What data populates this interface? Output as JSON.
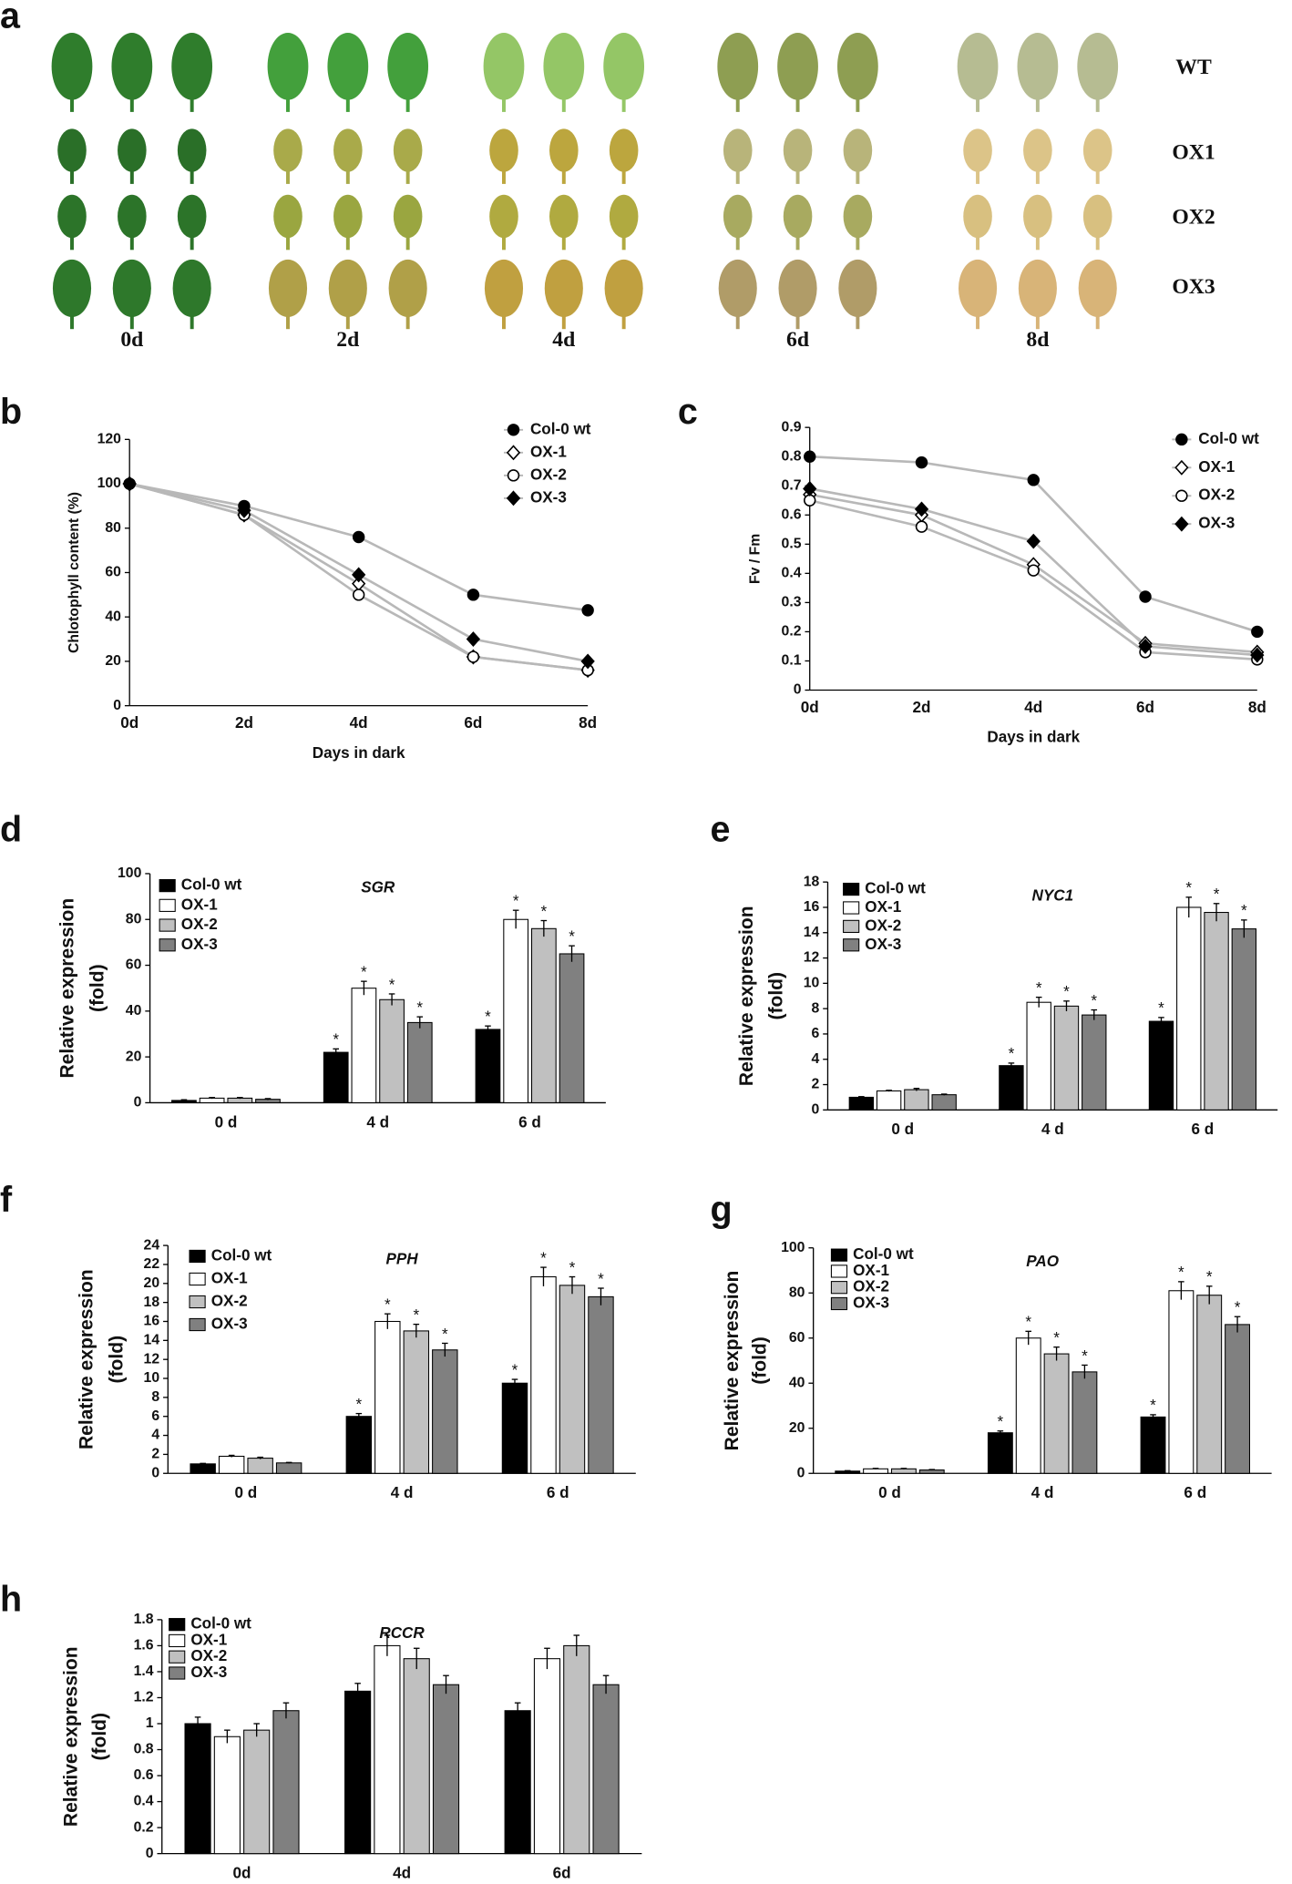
{
  "photo_panel": {
    "panel": "a",
    "lines": [
      "WT",
      "OX1",
      "OX2",
      "OX3"
    ],
    "days": [
      "0d",
      "2d",
      "4d",
      "6d",
      "8d"
    ]
  },
  "chart_data": [
    {
      "type": "line",
      "panel": "b",
      "ylabel": [
        "Chlotophyll content (%)"
      ],
      "xlabel": "Days in dark",
      "categories": [
        "0d",
        "2d",
        "4d",
        "6d",
        "8d"
      ],
      "ylim": [
        0,
        120
      ],
      "yticks": [
        0,
        20,
        40,
        60,
        80,
        100,
        120
      ],
      "series": [
        {
          "name": "Col-0 wt",
          "marker": "circle",
          "filled": true,
          "color": "#b8b8b8",
          "values": [
            100,
            90,
            76,
            50,
            43
          ]
        },
        {
          "name": "OX-1",
          "marker": "diamond",
          "filled": false,
          "color": "#b8b8b8",
          "values": [
            100,
            86,
            55,
            22,
            16
          ]
        },
        {
          "name": "OX-2",
          "marker": "circle",
          "filled": false,
          "color": "#b8b8b8",
          "values": [
            100,
            86,
            50,
            22,
            16
          ]
        },
        {
          "name": "OX-3",
          "marker": "diamond",
          "filled": true,
          "color": "#b8b8b8",
          "values": [
            100,
            88,
            59,
            30,
            20
          ]
        }
      ]
    },
    {
      "type": "line",
      "panel": "c",
      "ylabel": [
        "Fv / Fm"
      ],
      "xlabel": "Days in dark",
      "categories": [
        "0d",
        "2d",
        "4d",
        "6d",
        "8d"
      ],
      "ylim": [
        0,
        0.9
      ],
      "yticks": [
        0,
        0.1,
        0.2,
        0.3,
        0.4,
        0.5,
        0.6,
        0.7,
        0.8,
        0.9
      ],
      "series": [
        {
          "name": "Col-0 wt",
          "marker": "circle",
          "filled": true,
          "color": "#b8b8b8",
          "values": [
            0.8,
            0.78,
            0.72,
            0.32,
            0.2
          ]
        },
        {
          "name": "OX-1",
          "marker": "diamond",
          "filled": false,
          "color": "#b8b8b8",
          "values": [
            0.67,
            0.6,
            0.43,
            0.16,
            0.13
          ]
        },
        {
          "name": "OX-2",
          "marker": "circle",
          "filled": false,
          "color": "#b8b8b8",
          "values": [
            0.65,
            0.56,
            0.41,
            0.13,
            0.105
          ]
        },
        {
          "name": "OX-3",
          "marker": "diamond",
          "filled": true,
          "color": "#b8b8b8",
          "values": [
            0.69,
            0.62,
            0.51,
            0.15,
            0.12
          ]
        }
      ]
    },
    {
      "type": "bar",
      "panel": "d",
      "gene": "SGR",
      "ylabel": [
        "Relative expression",
        "(fold)"
      ],
      "categories": [
        "0 d",
        "4 d",
        "6 d"
      ],
      "ylim": [
        0,
        100
      ],
      "yticks": [
        0,
        20,
        40,
        60,
        80,
        100
      ],
      "series": [
        {
          "name": "Col-0 wt",
          "color": "#000000",
          "values": [
            1,
            22,
            32
          ],
          "errors": [
            0.3,
            1.5,
            1.5
          ],
          "significance": [
            null,
            "*",
            "*"
          ]
        },
        {
          "name": "OX-1",
          "color": "#ffffff",
          "values": [
            2,
            50,
            80
          ],
          "errors": [
            0.3,
            3,
            4
          ],
          "significance": [
            null,
            "*",
            "*"
          ]
        },
        {
          "name": "OX-2",
          "color": "#c0c0c0",
          "values": [
            2,
            45,
            76
          ],
          "errors": [
            0.3,
            2.5,
            3.5
          ],
          "significance": [
            null,
            "*",
            "*"
          ]
        },
        {
          "name": "OX-3",
          "color": "#808080",
          "values": [
            1.5,
            35,
            65
          ],
          "errors": [
            0.3,
            2.5,
            3.5
          ],
          "significance": [
            null,
            "*",
            "*"
          ]
        }
      ]
    },
    {
      "type": "bar",
      "panel": "e",
      "gene": "NYC1",
      "ylabel": [
        "Relative expression",
        "(fold)"
      ],
      "categories": [
        "0 d",
        "4 d",
        "6 d"
      ],
      "ylim": [
        0,
        18
      ],
      "yticks": [
        0,
        2,
        4,
        6,
        8,
        10,
        12,
        14,
        16,
        18
      ],
      "series": [
        {
          "name": "Col-0 wt",
          "color": "#000000",
          "values": [
            1,
            3.5,
            7
          ],
          "errors": [
            0.05,
            0.2,
            0.3
          ],
          "significance": [
            null,
            "*",
            "*"
          ]
        },
        {
          "name": "OX-1",
          "color": "#ffffff",
          "values": [
            1.5,
            8.5,
            16
          ],
          "errors": [
            0.05,
            0.4,
            0.8
          ],
          "significance": [
            null,
            "*",
            "*"
          ]
        },
        {
          "name": "OX-2",
          "color": "#c0c0c0",
          "values": [
            1.6,
            8.2,
            15.6
          ],
          "errors": [
            0.1,
            0.4,
            0.7
          ],
          "significance": [
            null,
            "*",
            "*"
          ]
        },
        {
          "name": "OX-3",
          "color": "#808080",
          "values": [
            1.2,
            7.5,
            14.3
          ],
          "errors": [
            0.05,
            0.4,
            0.7
          ],
          "significance": [
            null,
            "*",
            "*"
          ]
        }
      ]
    },
    {
      "type": "bar",
      "panel": "f",
      "gene": "PPH",
      "ylabel": [
        "Relative expression",
        "(fold)"
      ],
      "categories": [
        "0 d",
        "4 d",
        "6 d"
      ],
      "ylim": [
        0,
        24
      ],
      "yticks": [
        0,
        2,
        4,
        6,
        8,
        10,
        12,
        14,
        16,
        18,
        20,
        22,
        24
      ],
      "series": [
        {
          "name": "Col-0 wt",
          "color": "#000000",
          "values": [
            1,
            6,
            9.5
          ],
          "errors": [
            0.05,
            0.3,
            0.4
          ],
          "significance": [
            null,
            "*",
            "*"
          ]
        },
        {
          "name": "OX-1",
          "color": "#ffffff",
          "values": [
            1.8,
            16,
            20.7
          ],
          "errors": [
            0.1,
            0.8,
            1
          ],
          "significance": [
            null,
            "*",
            "*"
          ]
        },
        {
          "name": "OX-2",
          "color": "#c0c0c0",
          "values": [
            1.6,
            15,
            19.8
          ],
          "errors": [
            0.1,
            0.7,
            0.9
          ],
          "significance": [
            null,
            "*",
            "*"
          ]
        },
        {
          "name": "OX-3",
          "color": "#808080",
          "values": [
            1.1,
            13,
            18.6
          ],
          "errors": [
            0.05,
            0.7,
            0.9
          ],
          "significance": [
            null,
            "*",
            "*"
          ]
        }
      ]
    },
    {
      "type": "bar",
      "panel": "g",
      "gene": "PAO",
      "ylabel": [
        "Relative expression",
        "(fold)"
      ],
      "categories": [
        "0 d",
        "4 d",
        "6 d"
      ],
      "ylim": [
        0,
        100
      ],
      "yticks": [
        0,
        20,
        40,
        60,
        80,
        100
      ],
      "series": [
        {
          "name": "Col-0 wt",
          "color": "#000000",
          "values": [
            1,
            18,
            25
          ],
          "errors": [
            0.2,
            0.8,
            1
          ],
          "significance": [
            null,
            "*",
            "*"
          ]
        },
        {
          "name": "OX-1",
          "color": "#ffffff",
          "values": [
            2,
            60,
            81
          ],
          "errors": [
            0.2,
            3,
            4
          ],
          "significance": [
            null,
            "*",
            "*"
          ]
        },
        {
          "name": "OX-2",
          "color": "#c0c0c0",
          "values": [
            2,
            53,
            79
          ],
          "errors": [
            0.2,
            3,
            4
          ],
          "significance": [
            null,
            "*",
            "*"
          ]
        },
        {
          "name": "OX-3",
          "color": "#808080",
          "values": [
            1.5,
            45,
            66
          ],
          "errors": [
            0.2,
            3,
            3.5
          ],
          "significance": [
            null,
            "*",
            "*"
          ]
        }
      ]
    },
    {
      "type": "bar",
      "panel": "h",
      "gene": "RCCR",
      "ylabel": [
        "Relative expression",
        "(fold)"
      ],
      "categories": [
        "0d",
        "4d",
        "6d"
      ],
      "ylim": [
        0,
        1.8
      ],
      "yticks": [
        0,
        0.2,
        0.4,
        0.6,
        0.8,
        1,
        1.2,
        1.4,
        1.6,
        1.8
      ],
      "series": [
        {
          "name": "Col-0 wt",
          "color": "#000000",
          "values": [
            1,
            1.25,
            1.1
          ],
          "errors": [
            0.05,
            0.06,
            0.06
          ]
        },
        {
          "name": "OX-1",
          "color": "#ffffff",
          "values": [
            0.9,
            1.6,
            1.5
          ],
          "errors": [
            0.05,
            0.08,
            0.08
          ]
        },
        {
          "name": "OX-2",
          "color": "#c0c0c0",
          "values": [
            0.95,
            1.5,
            1.6
          ],
          "errors": [
            0.05,
            0.08,
            0.08
          ]
        },
        {
          "name": "OX-3",
          "color": "#808080",
          "values": [
            1.1,
            1.3,
            1.3
          ],
          "errors": [
            0.06,
            0.07,
            0.07
          ]
        }
      ]
    }
  ]
}
